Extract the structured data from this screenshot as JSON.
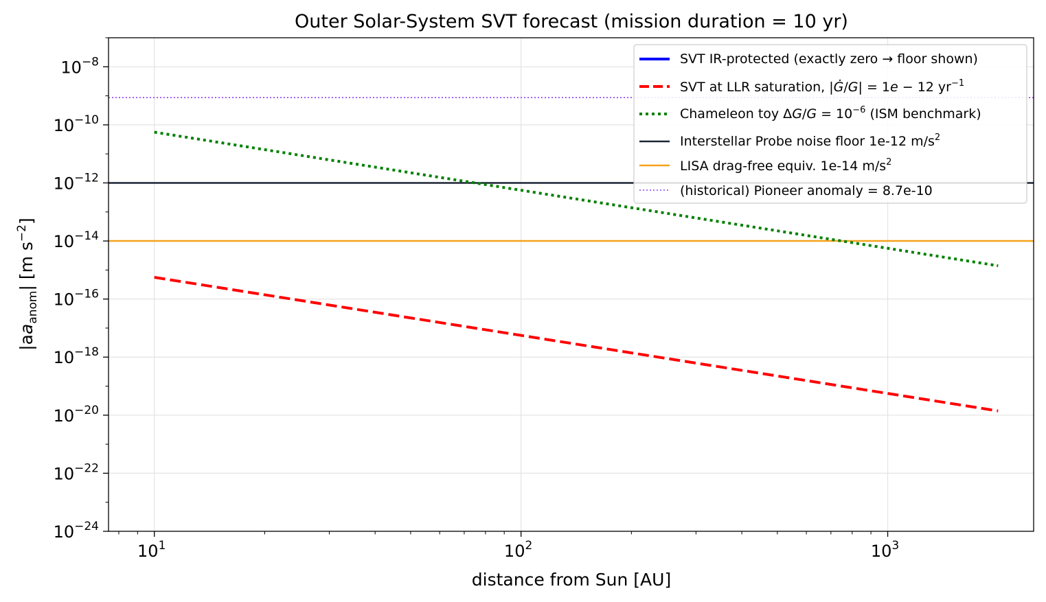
{
  "chart_data": {
    "type": "line",
    "title": "Outer Solar-System SVT forecast  (mission duration = 10 yr)",
    "xlabel": "distance from Sun [AU]",
    "ylabel": "|a_anom| [m s^-2]",
    "x_scale": "log",
    "y_scale": "log",
    "xlim": [
      7.5,
      2500
    ],
    "ylim": [
      1e-24,
      1e-07
    ],
    "grid": true,
    "legend_position": "top-right",
    "x_ticks": [
      {
        "value": 10,
        "base": "10",
        "exp": "1"
      },
      {
        "value": 100,
        "base": "10",
        "exp": "2"
      },
      {
        "value": 1000,
        "base": "10",
        "exp": "3"
      }
    ],
    "y_ticks": [
      {
        "value": 1e-08,
        "base": "10",
        "exp": "−8"
      },
      {
        "value": 1e-10,
        "base": "10",
        "exp": "−10"
      },
      {
        "value": 1e-12,
        "base": "10",
        "exp": "−12"
      },
      {
        "value": 1e-14,
        "base": "10",
        "exp": "−14"
      },
      {
        "value": 1e-16,
        "base": "10",
        "exp": "−16"
      },
      {
        "value": 1e-18,
        "base": "10",
        "exp": "−18"
      },
      {
        "value": 1e-20,
        "base": "10",
        "exp": "−20"
      },
      {
        "value": 1e-22,
        "base": "10",
        "exp": "−22"
      },
      {
        "value": 1e-24,
        "base": "10",
        "exp": "−24"
      }
    ],
    "series": [
      {
        "name": "SVT IR-protected (exactly zero → floor shown)",
        "color": "#0000ff",
        "style": "solid",
        "values": []
      },
      {
        "name": "SVT at LLR saturation, |Ġ/G| = 1e − 12 yr^−1",
        "color": "#ff0000",
        "style": "dashed",
        "x": [
          10,
          2000
        ],
        "y": [
          5.6e-16,
          1.4e-20
        ]
      },
      {
        "name": "Chameleon toy ΔG/G = 10^−6 (ISM benchmark)",
        "color": "#008000",
        "style": "dotted",
        "x": [
          10,
          2000
        ],
        "y": [
          5.6e-11,
          1.4e-15
        ]
      },
      {
        "name": "Interstellar Probe noise floor 1e-12 m/s^2",
        "color": "#1c2434",
        "style": "hline",
        "y": 1e-12
      },
      {
        "name": "LISA drag-free equiv. 1e-14 m/s^2",
        "color": "#f5a21b",
        "style": "hline",
        "y": 1e-14
      },
      {
        "name": "(historical) Pioneer anomaly = 8.7e-10",
        "color": "#8a3ff0",
        "style": "hline-dotted",
        "y": 8.7e-10
      }
    ]
  },
  "labels": {
    "ylabel_pre": "|a",
    "ylabel_sub": "anom",
    "ylabel_post": "| [m s",
    "ylabel_sup": "−2",
    "ylabel_end": "]",
    "legend": [
      {
        "t1": "SVT IR-protected (exactly zero ",
        "arrow": "→",
        "t2": " floor shown)"
      },
      {
        "t1": "SVT at LLR saturation, |",
        "gdot": "Ġ",
        "t2": "/",
        "g": "G",
        "t3": "| = 1",
        "e": "e",
        "t4": " − 12 yr",
        "sup": "−1"
      },
      {
        "t1": "Chameleon toy Δ",
        "g1": "G",
        "t2": "/",
        "g2": "G",
        "t3": " = 10",
        "sup": "−6",
        "t4": " (ISM benchmark)"
      },
      {
        "t1": "Interstellar Probe noise floor 1e-12 m/s",
        "sup": "2"
      },
      {
        "t1": "LISA drag-free equiv. 1e-14 m/s",
        "sup": "2"
      },
      {
        "t1": "(historical) Pioneer anomaly = 8.7e-10"
      }
    ]
  }
}
